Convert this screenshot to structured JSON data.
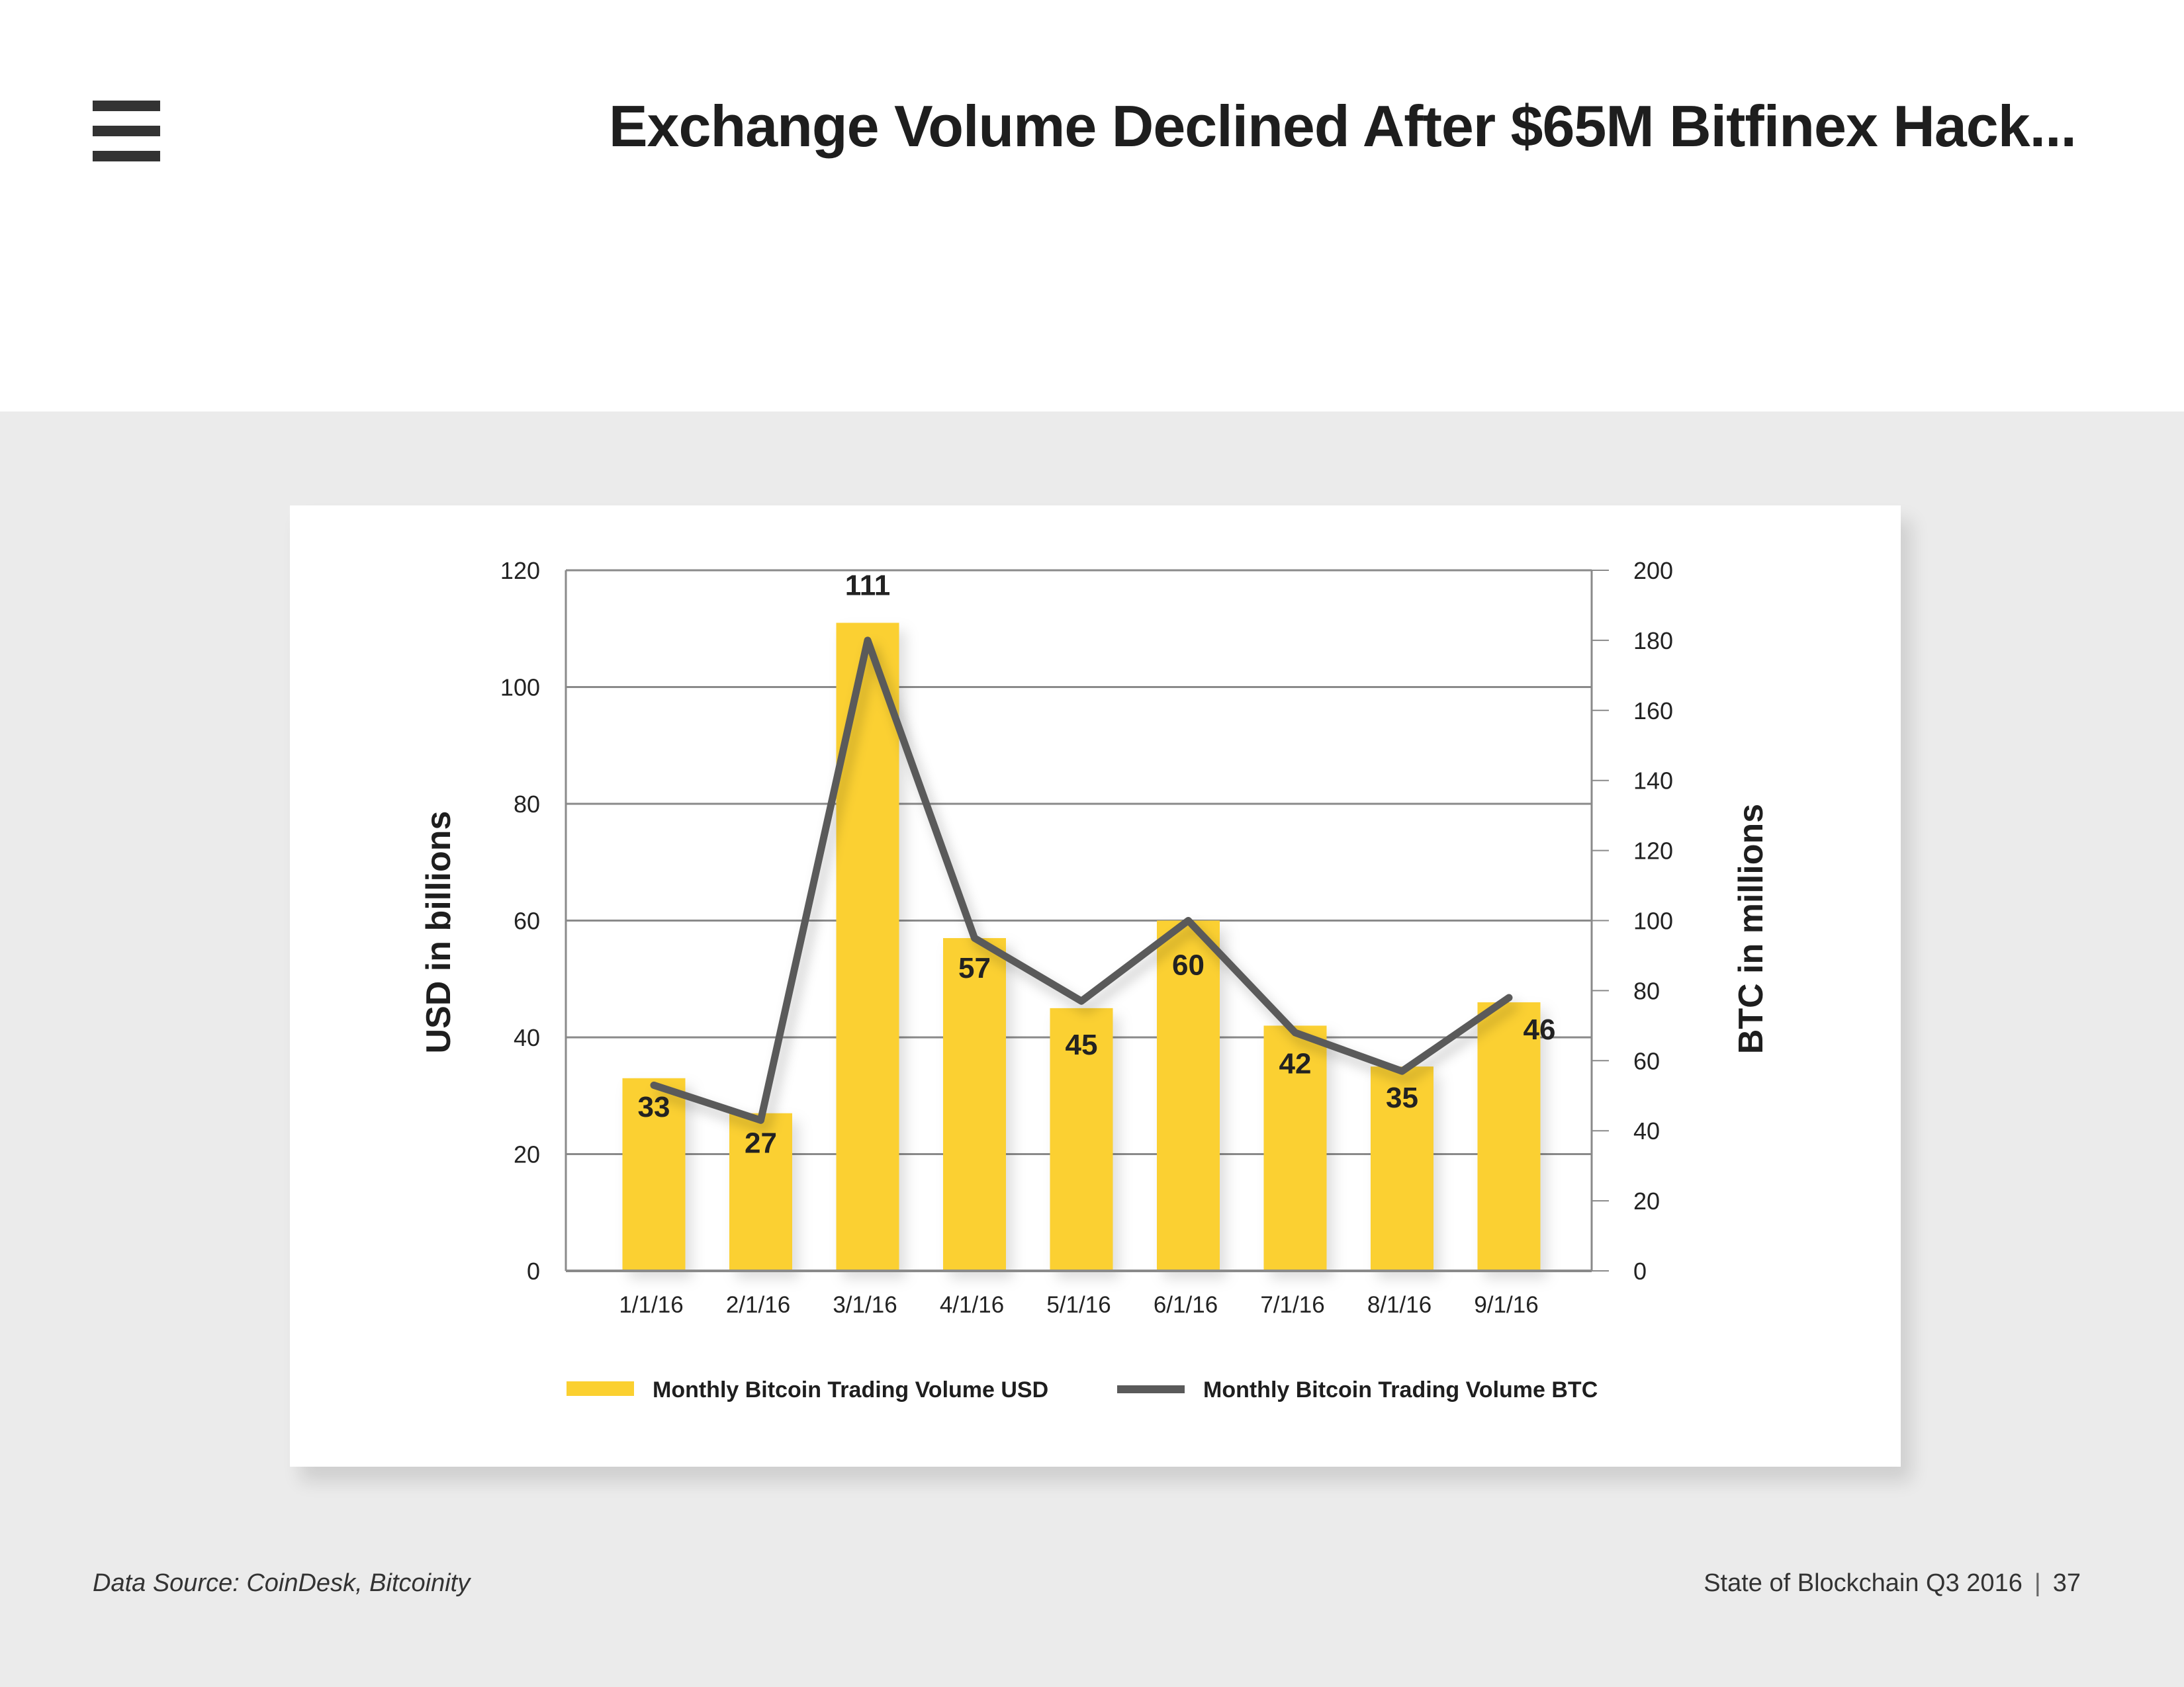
{
  "header": {
    "title": "Exchange Volume Declined After $65M Bitfinex Hack...",
    "menu_icon": "hamburger-menu-icon"
  },
  "colors": {
    "bar": "#fbd030",
    "line": "#5a5a5a",
    "grid": "#8a8a8a",
    "background_band": "#ebebeb",
    "text": "#222222"
  },
  "chart_data": {
    "type": "bar",
    "title": "",
    "categories": [
      "1/1/16",
      "2/1/16",
      "3/1/16",
      "4/1/16",
      "5/1/16",
      "6/1/16",
      "7/1/16",
      "8/1/16",
      "9/1/16"
    ],
    "series": [
      {
        "name": "Monthly Bitcoin Trading Volume USD",
        "type": "bar",
        "axis": "left",
        "values": [
          33,
          27,
          111,
          57,
          45,
          60,
          42,
          35,
          46
        ],
        "data_labels": [
          "33",
          "27",
          "111",
          "57",
          "45",
          "60",
          "42",
          "35",
          "46"
        ]
      },
      {
        "name": "Monthly Bitcoin Trading Volume BTC",
        "type": "line",
        "axis": "right",
        "values": [
          53,
          43,
          180,
          95,
          77,
          100,
          68,
          57,
          78
        ]
      }
    ],
    "ylabel": "USD in billions",
    "y2label": "BTC in millions",
    "ylim": [
      0,
      120
    ],
    "y2lim": [
      0,
      200
    ],
    "yticks": [
      0,
      20,
      40,
      60,
      80,
      100,
      120
    ],
    "y2ticks": [
      0,
      20,
      40,
      60,
      80,
      100,
      120,
      140,
      160,
      180,
      200
    ],
    "grid": true,
    "legend": "bottom"
  },
  "footer": {
    "source": "Data Source: CoinDesk, Bitcoinity",
    "report": "State of Blockchain Q3 2016",
    "separator": "|",
    "page_number": "37"
  }
}
